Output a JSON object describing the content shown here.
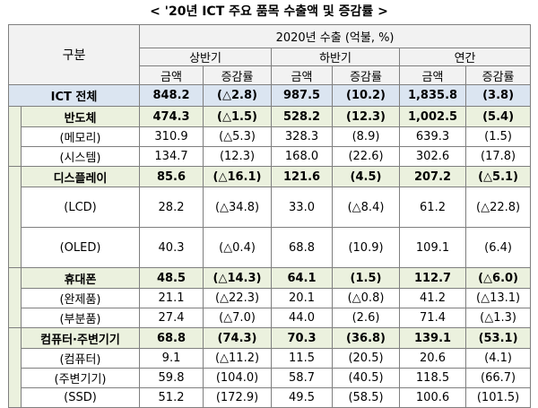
{
  "caption": "< '20년 ICT 주요 품목 수출액 및 증감률 >",
  "header": {
    "category": "구분",
    "top": "2020년 수출 (억불, %)",
    "periods": [
      "상반기",
      "하반기",
      "연간"
    ],
    "cols": [
      "금액",
      "증감률",
      "금액",
      "증감률",
      "금액",
      "증감률"
    ]
  },
  "total": {
    "label": "ICT 전체",
    "values": [
      "848.2",
      "(△2.8)",
      "987.5",
      "(10.2)",
      "1,835.8",
      "(3.8)"
    ]
  },
  "groups": [
    {
      "label": "반도체",
      "values": [
        "474.3",
        "(△1.5)",
        "528.2",
        "(12.3)",
        "1,002.5",
        "(5.4)"
      ],
      "items": [
        {
          "label": "(메모리)",
          "values": [
            "310.9",
            "(△5.3)",
            "328.3",
            "(8.9)",
            "639.3",
            "(1.5)"
          ]
        },
        {
          "label": "(시스템)",
          "values": [
            "134.7",
            "(12.3)",
            "168.0",
            "(22.6)",
            "302.6",
            "(17.8)"
          ]
        }
      ]
    },
    {
      "label": "디스플레이",
      "values": [
        "85.6",
        "(△16.1)",
        "121.6",
        "(4.5)",
        "207.2",
        "(△5.1)"
      ],
      "items": [
        {
          "label": "(LCD)",
          "values": [
            "28.2",
            "(△34.8)",
            "33.0",
            "(△8.4)",
            "61.2",
            "(△22.8)"
          ]
        },
        {
          "label": "(OLED)",
          "values": [
            "40.3",
            "(△0.4)",
            "68.8",
            "(10.9)",
            "109.1",
            "(6.4)"
          ]
        }
      ]
    },
    {
      "label": "휴대폰",
      "values": [
        "48.5",
        "(△14.3)",
        "64.1",
        "(1.5)",
        "112.7",
        "(△6.0)"
      ],
      "items": [
        {
          "label": "(완제품)",
          "values": [
            "21.1",
            "(△22.3)",
            "20.1",
            "(△0.8)",
            "41.2",
            "(△13.1)"
          ]
        },
        {
          "label": "(부분품)",
          "values": [
            "27.4",
            "(△7.0)",
            "44.0",
            "(2.6)",
            "71.4",
            "(△1.3)"
          ]
        }
      ]
    },
    {
      "label": "컴퓨터·주변기기",
      "values": [
        "68.8",
        "(74.3)",
        "70.3",
        "(36.8)",
        "139.1",
        "(53.1)"
      ],
      "items": [
        {
          "label": "(컴퓨터)",
          "values": [
            "9.1",
            "(△11.2)",
            "11.5",
            "(20.5)",
            "20.6",
            "(4.1)"
          ]
        },
        {
          "label": "(주변기기)",
          "values": [
            "59.8",
            "(104.0)",
            "58.7",
            "(40.5)",
            "118.5",
            "(66.7)"
          ]
        },
        {
          "label": "(SSD)",
          "values": [
            "51.2",
            "(172.9)",
            "49.5",
            "(58.5)",
            "100.6",
            "(101.5)"
          ]
        }
      ]
    }
  ]
}
